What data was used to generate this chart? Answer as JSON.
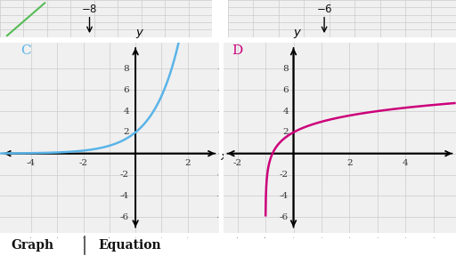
{
  "background_color": "#ffffff",
  "grid_color": "#cccccc",
  "grid_bg": "#f0f0f0",
  "axis_color": "#111111",
  "tick_label_color": "#333333",
  "tick_fontsize": 7.5,
  "label_fontsize": 10,
  "bottom_fontsize": 10,
  "graph_C": {
    "label": "C",
    "label_color": "#5ab4e8",
    "curve_color": "#5ab4e8",
    "xlim": [
      -5.2,
      3.2
    ],
    "ylim": [
      -7.5,
      10.5
    ],
    "xticks": [
      -4,
      -3,
      -2,
      -1,
      0,
      1,
      2
    ],
    "yticks": [
      -6,
      -4,
      -2,
      0,
      2,
      4,
      6,
      8
    ],
    "xtick_labels": [
      "-4",
      "-2",
      "2"
    ],
    "xtick_label_vals": [
      -4,
      -2,
      2
    ],
    "ytick_labels": [
      "-6",
      "-4",
      "-2",
      "2",
      "4",
      "6",
      "8"
    ],
    "ytick_label_vals": [
      -6,
      -4,
      -2,
      2,
      4,
      6,
      8
    ],
    "curve_func": "2*exp(x)"
  },
  "graph_D": {
    "label": "D",
    "label_color": "#cc007a",
    "curve_color": "#cc007a",
    "xlim": [
      -2.5,
      5.8
    ],
    "ylim": [
      -7.5,
      10.5
    ],
    "xticks": [
      -2,
      -1,
      0,
      1,
      2,
      3,
      4,
      5
    ],
    "yticks": [
      -6,
      -4,
      -2,
      0,
      2,
      4,
      6,
      8
    ],
    "xtick_labels": [
      "-2",
      "2",
      "4"
    ],
    "xtick_label_vals": [
      -2,
      2,
      4
    ],
    "ytick_labels": [
      "-6",
      "-4",
      "-2",
      "2",
      "4",
      "6",
      "8"
    ],
    "ytick_label_vals": [
      -6,
      -4,
      -2,
      2,
      4,
      6,
      8
    ],
    "curve_func": "log2(x+1)+2",
    "asymptote_x": -1.0
  },
  "top_left": {
    "label": "-8",
    "green_line": true
  },
  "top_right": {
    "label": "-6"
  },
  "bottom_label_graph": "Graph",
  "bottom_label_equation": "Equation"
}
